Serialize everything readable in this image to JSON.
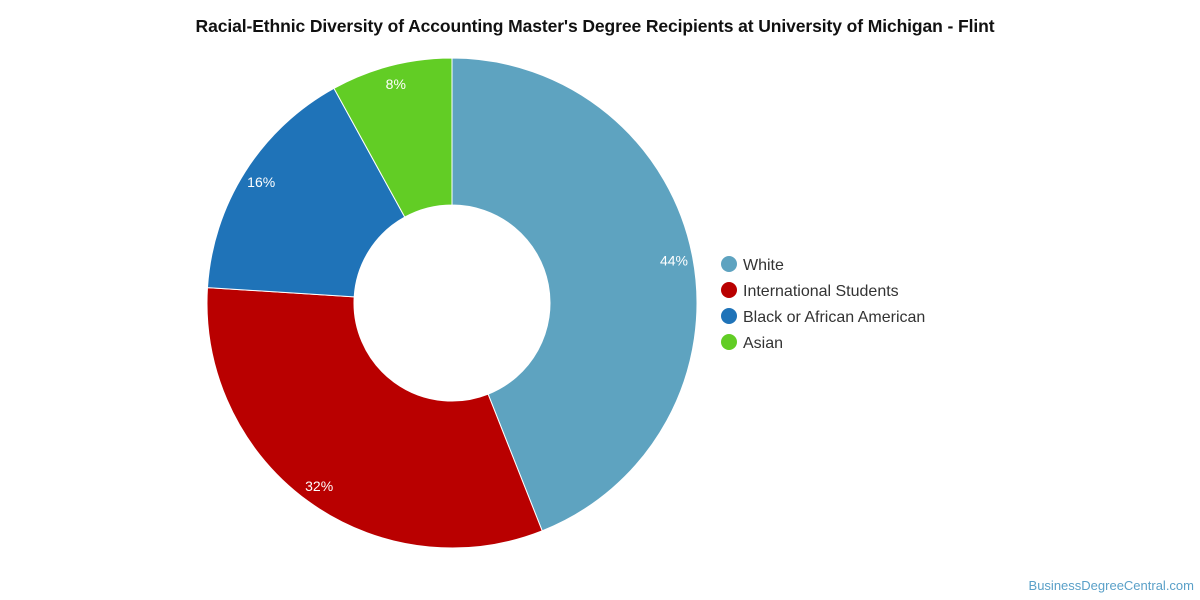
{
  "chart_data": {
    "type": "pie",
    "donut": true,
    "title": "Racial-Ethnic Diversity of Accounting Master's Degree Recipients at University of Michigan - Flint",
    "categories": [
      "White",
      "International Students",
      "Black or African American",
      "Asian"
    ],
    "values": [
      44,
      32,
      16,
      8
    ],
    "labels": [
      "44%",
      "32%",
      "16%",
      "8%"
    ],
    "colors": [
      "#5ea3c0",
      "#b90000",
      "#1f73b8",
      "#62cd25"
    ],
    "legend_position": "right"
  },
  "watermark": "BusinessDegreeCentral.com"
}
